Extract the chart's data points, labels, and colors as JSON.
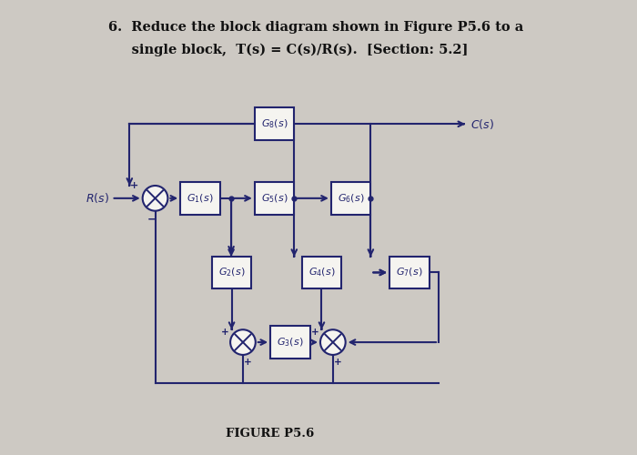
{
  "title_line1": "6.  Reduce the block diagram shown in Figure P5.6 to a",
  "title_line2": "     single block,  T(s) = C(s)/R(s).  [Section: 5.2]",
  "figure_label": "FIGURE P5.6",
  "bg_color": "#cdc9c3",
  "box_color": "#22246e",
  "line_color": "#22246e",
  "text_color": "#22246e",
  "title_color": "#111111",
  "S1": [
    0.145,
    0.565
  ],
  "G1": [
    0.245,
    0.565,
    0.088,
    0.072
  ],
  "G5": [
    0.41,
    0.565,
    0.088,
    0.072
  ],
  "G6": [
    0.58,
    0.565,
    0.088,
    0.072
  ],
  "G8": [
    0.41,
    0.73,
    0.088,
    0.072
  ],
  "G2": [
    0.315,
    0.4,
    0.088,
    0.072
  ],
  "G4": [
    0.515,
    0.4,
    0.088,
    0.072
  ],
  "G7": [
    0.71,
    0.4,
    0.088,
    0.072
  ],
  "G3": [
    0.445,
    0.245,
    0.088,
    0.072
  ],
  "S2": [
    0.34,
    0.245
  ],
  "S3": [
    0.54,
    0.245
  ],
  "r_sm": 0.028
}
